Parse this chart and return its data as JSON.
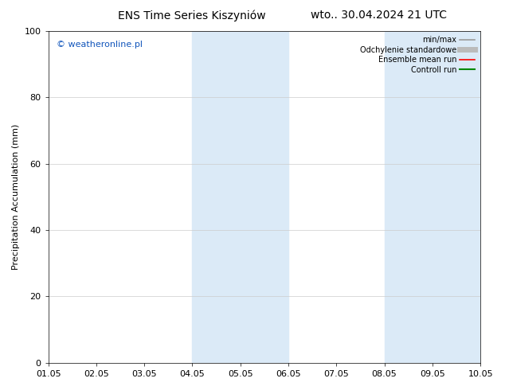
{
  "title": "ENS Time Series Kiszyniów",
  "title_right": "wto.. 30.04.2024 21 UTC",
  "ylabel": "Precipitation Accumulation (mm)",
  "watermark": "© weatheronline.pl",
  "xlim_start": 0,
  "xlim_end": 9,
  "ylim": [
    0,
    100
  ],
  "yticks": [
    0,
    20,
    40,
    60,
    80,
    100
  ],
  "xtick_positions": [
    0,
    1,
    2,
    3,
    4,
    5,
    6,
    7,
    8,
    9
  ],
  "xtick_labels": [
    "01.05",
    "02.05",
    "03.05",
    "04.05",
    "05.05",
    "06.05",
    "07.05",
    "08.05",
    "09.05",
    "10.05"
  ],
  "shaded_regions": [
    {
      "xmin": 3.0,
      "xmax": 4.0,
      "color": "#dbeaf7"
    },
    {
      "xmin": 4.0,
      "xmax": 5.0,
      "color": "#dbeaf7"
    },
    {
      "xmin": 7.0,
      "xmax": 8.0,
      "color": "#dbeaf7"
    },
    {
      "xmin": 8.0,
      "xmax": 9.0,
      "color": "#dbeaf7"
    }
  ],
  "legend_entries": [
    {
      "label": "min/max",
      "color": "#999999",
      "lw": 1.2
    },
    {
      "label": "Odchylenie standardowe",
      "color": "#bbbbbb",
      "lw": 5
    },
    {
      "label": "Ensemble mean run",
      "color": "#ff0000",
      "lw": 1.2
    },
    {
      "label": "Controll run",
      "color": "#008800",
      "lw": 1.5
    }
  ],
  "background_color": "#ffffff",
  "plot_bg_color": "#ffffff",
  "grid_color": "#cccccc",
  "watermark_color": "#1155bb",
  "title_fontsize": 10,
  "axis_fontsize": 8,
  "tick_fontsize": 8,
  "legend_fontsize": 7
}
